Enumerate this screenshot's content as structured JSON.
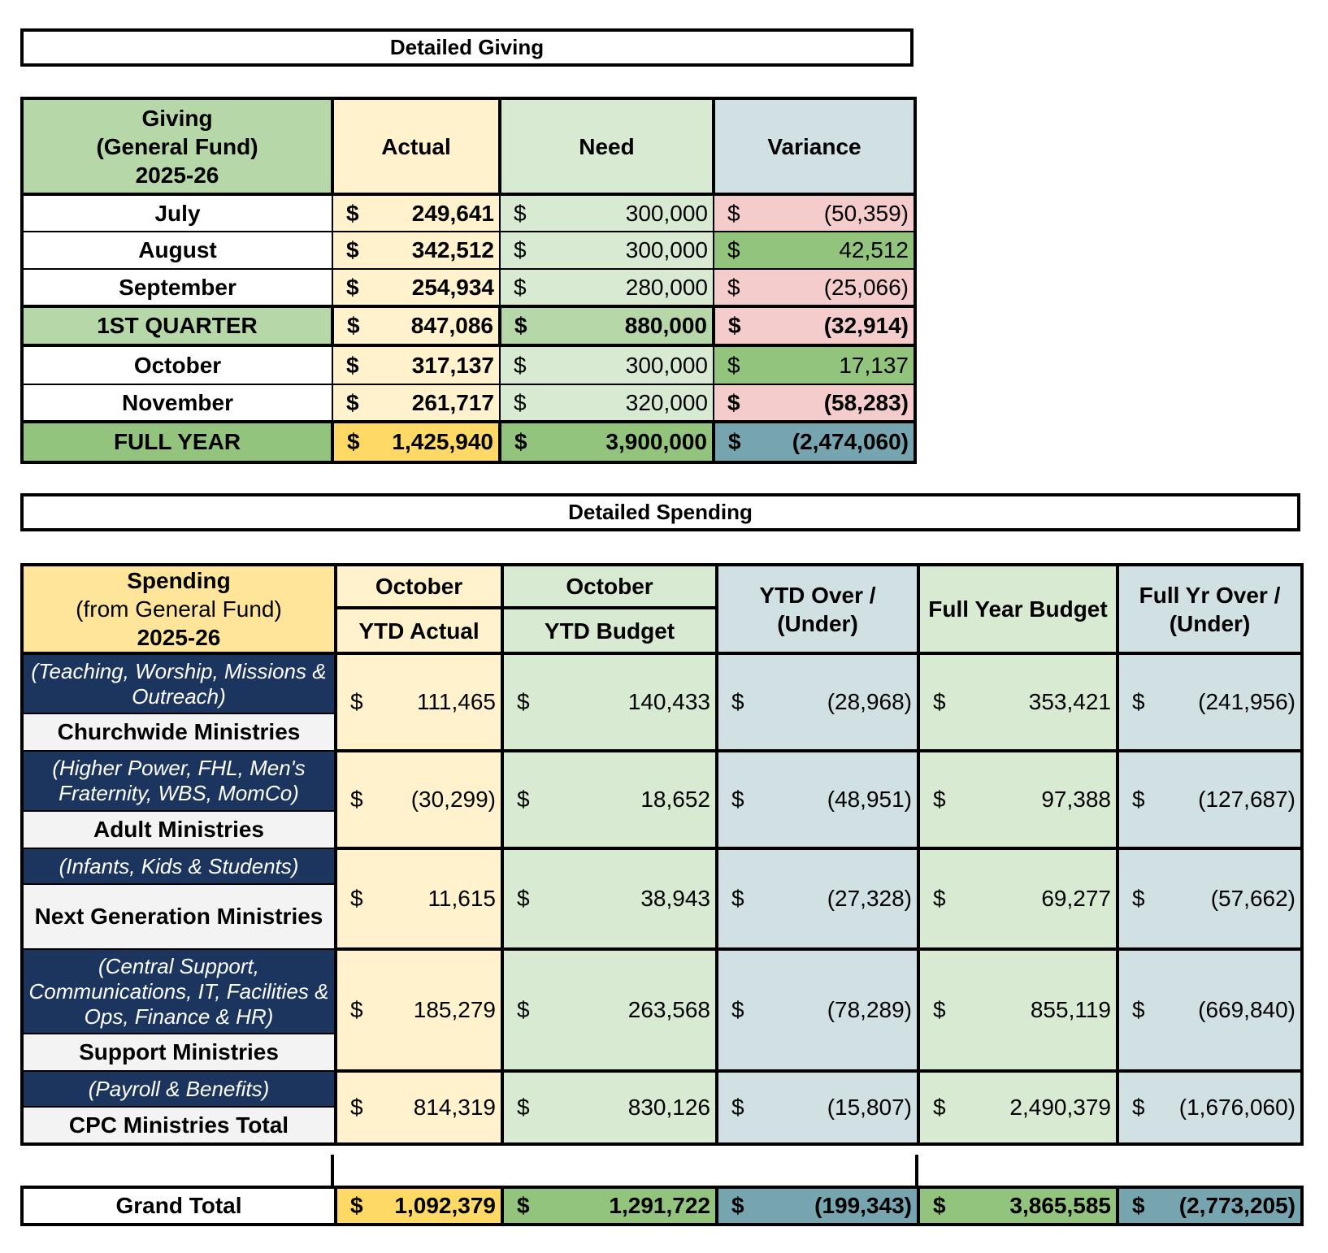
{
  "giving": {
    "title": "Detailed Giving",
    "header": {
      "label_line1": "Giving",
      "label_line2": "(General Fund)",
      "label_line3": "2025-26",
      "actual": "Actual",
      "need": "Need",
      "variance": "Variance"
    },
    "rows": [
      {
        "label": "July",
        "actual": "249,641",
        "need": "300,000",
        "variance": "(50,359)",
        "variance_status": "negative"
      },
      {
        "label": "August",
        "actual": "342,512",
        "need": "300,000",
        "variance": "42,512",
        "variance_status": "positive"
      },
      {
        "label": "September",
        "actual": "254,934",
        "need": "280,000",
        "variance": "(25,066)",
        "variance_status": "negative"
      },
      {
        "label": "1ST QUARTER",
        "actual": "847,086",
        "need": "880,000",
        "variance": "(32,914)",
        "variance_status": "negative"
      },
      {
        "label": "October",
        "actual": "317,137",
        "need": "300,000",
        "variance": "17,137",
        "variance_status": "positive"
      },
      {
        "label": "November",
        "actual": "261,717",
        "need": "320,000",
        "variance": "(58,283)",
        "variance_status": "negative"
      },
      {
        "label": "FULL YEAR",
        "actual": "1,425,940",
        "need": "3,900,000",
        "variance": "(2,474,060)",
        "variance_status": "total"
      }
    ]
  },
  "spending": {
    "title": "Detailed Spending",
    "header": {
      "label_line1": "Spending",
      "label_line2": "(from General Fund)",
      "label_line3": "2025-26",
      "ytd_actual_top": "October",
      "ytd_actual_bottom": "YTD Actual",
      "ytd_budget_top": "October",
      "ytd_budget_bottom": "YTD Budget",
      "ytd_over_line1": "YTD Over /",
      "ytd_over_line2": "(Under)",
      "full_year_budget": "Full Year Budget",
      "full_over_line1": "Full Yr Over /",
      "full_over_line2": "(Under)"
    },
    "rows": [
      {
        "desc": "(Teaching, Worship, Missions & Outreach)",
        "name": "Churchwide Ministries",
        "ytd_actual": "111,465",
        "ytd_budget": "140,433",
        "ytd_over": "(28,968)",
        "full_budget": "353,421",
        "full_over": "(241,956)"
      },
      {
        "desc": "(Higher Power, FHL, Men's Fraternity, WBS, MomCo)",
        "name": "Adult Ministries",
        "ytd_actual": "(30,299)",
        "ytd_budget": "18,652",
        "ytd_over": "(48,951)",
        "full_budget": "97,388",
        "full_over": "(127,687)"
      },
      {
        "desc": "(Infants, Kids & Students)",
        "name": "Next Generation Ministries",
        "ytd_actual": "11,615",
        "ytd_budget": "38,943",
        "ytd_over": "(27,328)",
        "full_budget": "69,277",
        "full_over": "(57,662)"
      },
      {
        "desc": "(Central Support, Communications, IT, Facilities & Ops, Finance & HR)",
        "name": "Support Ministries",
        "ytd_actual": "185,279",
        "ytd_budget": "263,568",
        "ytd_over": "(78,289)",
        "full_budget": "855,119",
        "full_over": "(669,840)"
      },
      {
        "desc": "(Payroll & Benefits)",
        "name": "CPC Ministries Total",
        "ytd_actual": "814,319",
        "ytd_budget": "830,126",
        "ytd_over": "(15,807)",
        "full_budget": "2,490,379",
        "full_over": "(1,676,060)"
      }
    ],
    "grand_total": {
      "label": "Grand Total",
      "ytd_actual": "1,092,379",
      "ytd_budget": "1,291,722",
      "ytd_over": "(199,343)",
      "full_budget": "3,865,585",
      "full_over": "(2,773,205)"
    }
  },
  "currency_symbol": "$"
}
